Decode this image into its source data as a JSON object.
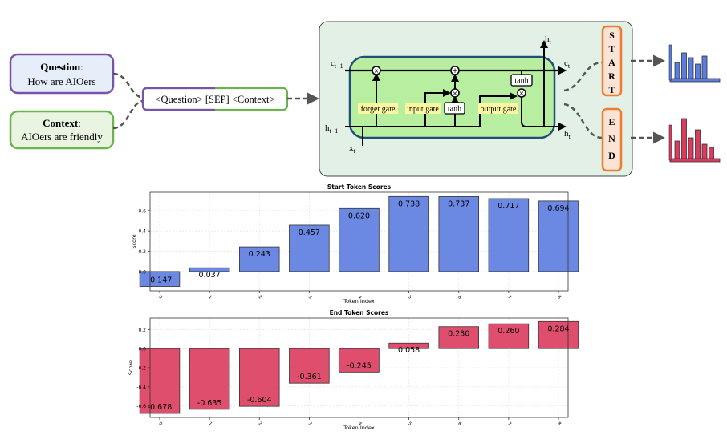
{
  "diagram": {
    "question_box": {
      "label": "Question",
      "text": "How are AIOers"
    },
    "context_box": {
      "label": "Context",
      "text": "AIOers are friendly"
    },
    "input_box": {
      "text": "<Question> [SEP] <Context>"
    },
    "lstm": {
      "c_in": "c",
      "c_in_sub": "t−1",
      "c_out": "c",
      "c_out_sub": "t",
      "h_in": "h",
      "h_in_sub": "t−1",
      "h_out": "h",
      "h_out_sub": "t",
      "h_top": "h",
      "h_top_sub": "t",
      "x_in": "x",
      "x_in_sub": "t",
      "forget_gate": "forget gate",
      "input_gate": "input gate",
      "output_gate": "output gate",
      "tanh_1": "tanh",
      "tanh_2": "tanh",
      "mult_symbol": "×",
      "add_symbol": "+"
    },
    "start_box": {
      "letters": [
        "S",
        "T",
        "A",
        "R",
        "T"
      ]
    },
    "end_box": {
      "letters": [
        "E",
        "N",
        "D"
      ]
    },
    "colors": {
      "question_border": "#7a52a8",
      "question_fill": "#e6eef9",
      "context_border": "#6bb34a",
      "context_fill": "#e9f5e1",
      "input_border_left": "#7a52a8",
      "input_border_right": "#6bb34a",
      "lstm_outer_fill": "#e3f0e6",
      "lstm_inner_fill": "#b8eea0",
      "lstm_inner_border": "#1f4e79",
      "gate_label_fill": "#fbf7a0",
      "start_end_border": "#ee7d31",
      "start_end_fill": "#fbe4d5",
      "blue_bars": "#5b7ce0",
      "red_bars": "#dc3b5d"
    }
  },
  "chart_data": [
    {
      "type": "bar",
      "title": "Start Token Scores",
      "xlabel": "Token Index",
      "ylabel": "Score",
      "categories": [
        "0",
        "1",
        "2",
        "3",
        "4",
        "5",
        "6",
        "7",
        "8"
      ],
      "values": [
        -0.147,
        0.037,
        0.243,
        0.457,
        0.62,
        0.738,
        0.737,
        0.717,
        0.694
      ],
      "labels": [
        "-0.147",
        "0.037",
        "0.243",
        "0.457",
        "0.620",
        "0.738",
        "0.737",
        "0.717",
        "0.694"
      ],
      "yticks": [
        "0.0",
        "0.2",
        "0.4",
        "0.6"
      ],
      "ytick_values": [
        0.0,
        0.2,
        0.4,
        0.6
      ],
      "ylim": [
        -0.19,
        0.78
      ],
      "grid": true,
      "color": "#5b7ce0"
    },
    {
      "type": "bar",
      "title": "End Token Scores",
      "xlabel": "Token Index",
      "ylabel": "Score",
      "categories": [
        "0",
        "1",
        "2",
        "3",
        "4",
        "5",
        "6",
        "7",
        "8"
      ],
      "values": [
        -0.678,
        -0.635,
        -0.604,
        -0.361,
        -0.245,
        0.058,
        0.23,
        0.26,
        0.284
      ],
      "labels": [
        "-0.678",
        "-0.635",
        "-0.604",
        "-0.361",
        "-0.245",
        "0.058",
        "0.230",
        "0.260",
        "0.284"
      ],
      "yticks": [
        "0.2",
        "0.0",
        "-0.2",
        "-0.4",
        "-0.6"
      ],
      "ytick_values": [
        0.2,
        0.0,
        -0.2,
        -0.4,
        -0.6
      ],
      "ylim": [
        -0.72,
        0.32
      ],
      "grid": true,
      "color": "#dc3b5d"
    }
  ]
}
